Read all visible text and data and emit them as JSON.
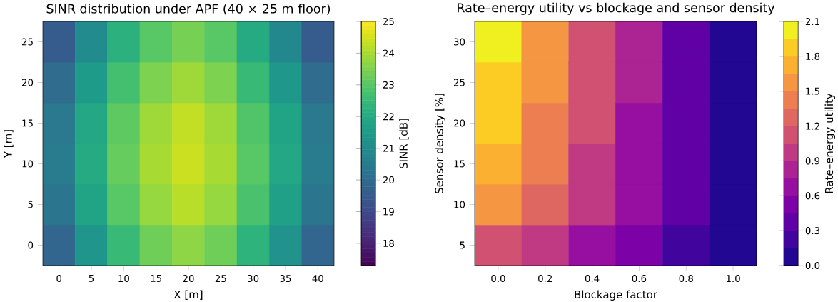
{
  "chart_data": [
    {
      "type": "heatmap",
      "title": "SINR distribution under APF (40 × 25 m floor)",
      "xlabel": "X [m]",
      "ylabel": "Y [m]",
      "clabel": "SINR [dB]",
      "categories": [
        "0",
        "5",
        "10",
        "15",
        "20",
        "25",
        "30",
        "35",
        "40"
      ],
      "y_categories": [
        "25",
        "20",
        "15",
        "10",
        "5",
        "0"
      ],
      "clim": [
        17.3,
        25
      ],
      "cticks": [
        18,
        19,
        20,
        21,
        22,
        23,
        24,
        25
      ],
      "cells": [
        [
          19.5,
          21.0,
          22.2,
          23.0,
          23.4,
          23.0,
          22.0,
          20.9,
          19.5
        ],
        [
          20.0,
          21.5,
          22.7,
          23.5,
          23.9,
          23.5,
          22.5,
          21.4,
          20.0
        ],
        [
          20.4,
          21.9,
          23.1,
          23.9,
          24.3,
          23.9,
          22.9,
          21.8,
          20.4
        ],
        [
          20.5,
          22.0,
          23.2,
          24.0,
          24.4,
          24.0,
          23.0,
          21.9,
          20.5
        ],
        [
          20.3,
          21.8,
          23.0,
          23.8,
          24.2,
          23.8,
          22.8,
          21.7,
          20.3
        ],
        [
          19.8,
          21.3,
          22.5,
          23.3,
          23.7,
          23.3,
          22.3,
          21.2,
          19.8
        ]
      ]
    },
    {
      "type": "heatmap",
      "title": "Rate–energy utility vs blockage and sensor density",
      "xlabel": "Blockage factor",
      "ylabel": "Sensor density [%]",
      "clabel": "Rate–energy utility",
      "categories": [
        "0.0",
        "0.2",
        "0.4",
        "0.6",
        "0.8",
        "1.0"
      ],
      "y_categories": [
        "30",
        "25",
        "20",
        "15",
        "10",
        "5"
      ],
      "clim": [
        0,
        2.1
      ],
      "cticks": [
        {
          "value": 0,
          "label": "0.0"
        },
        {
          "value": 0.3,
          "label": "0.3"
        },
        {
          "value": 0.6,
          "label": "0.6"
        },
        {
          "value": 0.9,
          "label": "0.9"
        },
        {
          "value": 1.2,
          "label": "1.2"
        },
        {
          "value": 1.5,
          "label": "1.5"
        },
        {
          "value": 1.8,
          "label": "1.8"
        },
        {
          "value": 2.1,
          "label": "2.1"
        }
      ],
      "cells": [
        [
          1.97,
          1.58,
          1.18,
          0.79,
          0.39,
          0
        ],
        [
          1.92,
          1.54,
          1.15,
          0.77,
          0.38,
          0
        ],
        [
          1.83,
          1.46,
          1.1,
          0.73,
          0.37,
          0
        ],
        [
          1.71,
          1.37,
          1.03,
          0.68,
          0.34,
          0
        ],
        [
          1.5,
          1.2,
          0.9,
          0.6,
          0.3,
          0
        ],
        [
          1.13,
          0.9,
          0.68,
          0.45,
          0.23,
          0
        ]
      ]
    }
  ]
}
